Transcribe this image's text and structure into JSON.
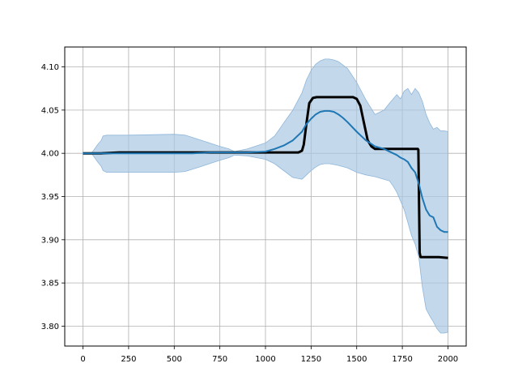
{
  "chart_data": {
    "type": "line",
    "title": "",
    "xlabel": "",
    "ylabel": "",
    "xlim": [
      -100,
      2100
    ],
    "ylim": [
      3.777,
      4.123
    ],
    "grid": true,
    "x_ticks": [
      0,
      250,
      500,
      750,
      1000,
      1250,
      1500,
      1750,
      2000
    ],
    "x_tick_labels": [
      "0",
      "250",
      "500",
      "750",
      "1000",
      "1250",
      "1500",
      "1750",
      "2000"
    ],
    "y_ticks": [
      3.8,
      3.85,
      3.9,
      3.95,
      4.0,
      4.05,
      4.1
    ],
    "y_tick_labels": [
      "3.80",
      "3.85",
      "3.90",
      "3.95",
      "4.00",
      "4.05",
      "4.10"
    ],
    "colors": {
      "band": "#a9c8e3",
      "band_edge": "#8fb6da",
      "mean": "#1f77b4",
      "reference": "#000000",
      "grid": "#b0b0b0"
    },
    "series": [
      {
        "role": "band",
        "x": [
          0,
          50,
          80,
          100,
          110,
          130,
          250,
          500,
          560,
          650,
          750,
          800,
          830,
          900,
          1000,
          1050,
          1100,
          1150,
          1200,
          1225,
          1250,
          1275,
          1300,
          1325,
          1350,
          1375,
          1400,
          1450,
          1500,
          1550,
          1600,
          1650,
          1680,
          1700,
          1720,
          1740,
          1760,
          1780,
          1800,
          1820,
          1840,
          1860,
          1880,
          1900,
          1920,
          1940,
          1960,
          1980,
          2000
        ],
        "upper": [
          4.001,
          4.001,
          4.01,
          4.015,
          4.02,
          4.021,
          4.021,
          4.022,
          4.021,
          4.015,
          4.008,
          4.005,
          4.002,
          4.005,
          4.012,
          4.02,
          4.035,
          4.05,
          4.07,
          4.085,
          4.096,
          4.103,
          4.107,
          4.109,
          4.109,
          4.108,
          4.106,
          4.098,
          4.082,
          4.062,
          4.045,
          4.05,
          4.058,
          4.063,
          4.068,
          4.063,
          4.072,
          4.075,
          4.068,
          4.075,
          4.07,
          4.06,
          4.045,
          4.035,
          4.028,
          4.03,
          4.026,
          4.026,
          4.025
        ],
        "lower": [
          3.999,
          3.999,
          3.99,
          3.985,
          3.98,
          3.978,
          3.978,
          3.978,
          3.979,
          3.985,
          3.992,
          3.995,
          3.998,
          3.997,
          3.993,
          3.988,
          3.98,
          3.972,
          3.97,
          3.975,
          3.98,
          3.984,
          3.987,
          3.988,
          3.988,
          3.987,
          3.986,
          3.983,
          3.978,
          3.975,
          3.973,
          3.97,
          3.968,
          3.962,
          3.955,
          3.945,
          3.935,
          3.92,
          3.905,
          3.895,
          3.88,
          3.845,
          3.82,
          3.812,
          3.805,
          3.797,
          3.792,
          3.792,
          3.793
        ]
      },
      {
        "role": "mean",
        "x": [
          0,
          100,
          200,
          300,
          400,
          500,
          600,
          700,
          800,
          900,
          1000,
          1050,
          1100,
          1150,
          1200,
          1225,
          1250,
          1275,
          1300,
          1325,
          1350,
          1375,
          1400,
          1425,
          1450,
          1500,
          1550,
          1600,
          1650,
          1700,
          1720,
          1740,
          1760,
          1780,
          1800,
          1820,
          1840,
          1860,
          1880,
          1900,
          1920,
          1940,
          1960,
          1980,
          2000
        ],
        "y": [
          4.0,
          4.0,
          4.0,
          4.0,
          4.0,
          4.0,
          4.0,
          4.001,
          4.001,
          4.001,
          4.002,
          4.005,
          4.009,
          4.015,
          4.025,
          4.034,
          4.04,
          4.045,
          4.048,
          4.049,
          4.049,
          4.048,
          4.045,
          4.041,
          4.036,
          4.025,
          4.015,
          4.008,
          4.005,
          4.0,
          3.998,
          3.995,
          3.993,
          3.99,
          3.983,
          3.978,
          3.965,
          3.948,
          3.935,
          3.928,
          3.926,
          3.915,
          3.911,
          3.909,
          3.909
        ]
      },
      {
        "role": "reference",
        "x": [
          0,
          100,
          200,
          500,
          800,
          1000,
          1100,
          1150,
          1180,
          1200,
          1210,
          1225,
          1240,
          1260,
          1280,
          1300,
          1350,
          1400,
          1450,
          1480,
          1500,
          1520,
          1540,
          1560,
          1580,
          1600,
          1650,
          1700,
          1750,
          1800,
          1835,
          1838,
          1845,
          1850,
          1900,
          1950,
          2000
        ],
        "y": [
          4.0,
          4.0,
          4.001,
          4.001,
          4.001,
          4.001,
          4.001,
          4.001,
          4.001,
          4.003,
          4.01,
          4.035,
          4.058,
          4.064,
          4.065,
          4.065,
          4.065,
          4.065,
          4.065,
          4.065,
          4.063,
          4.055,
          4.035,
          4.015,
          4.008,
          4.005,
          4.005,
          4.005,
          4.005,
          4.005,
          4.005,
          4.004,
          3.885,
          3.88,
          3.88,
          3.88,
          3.879
        ]
      }
    ]
  }
}
